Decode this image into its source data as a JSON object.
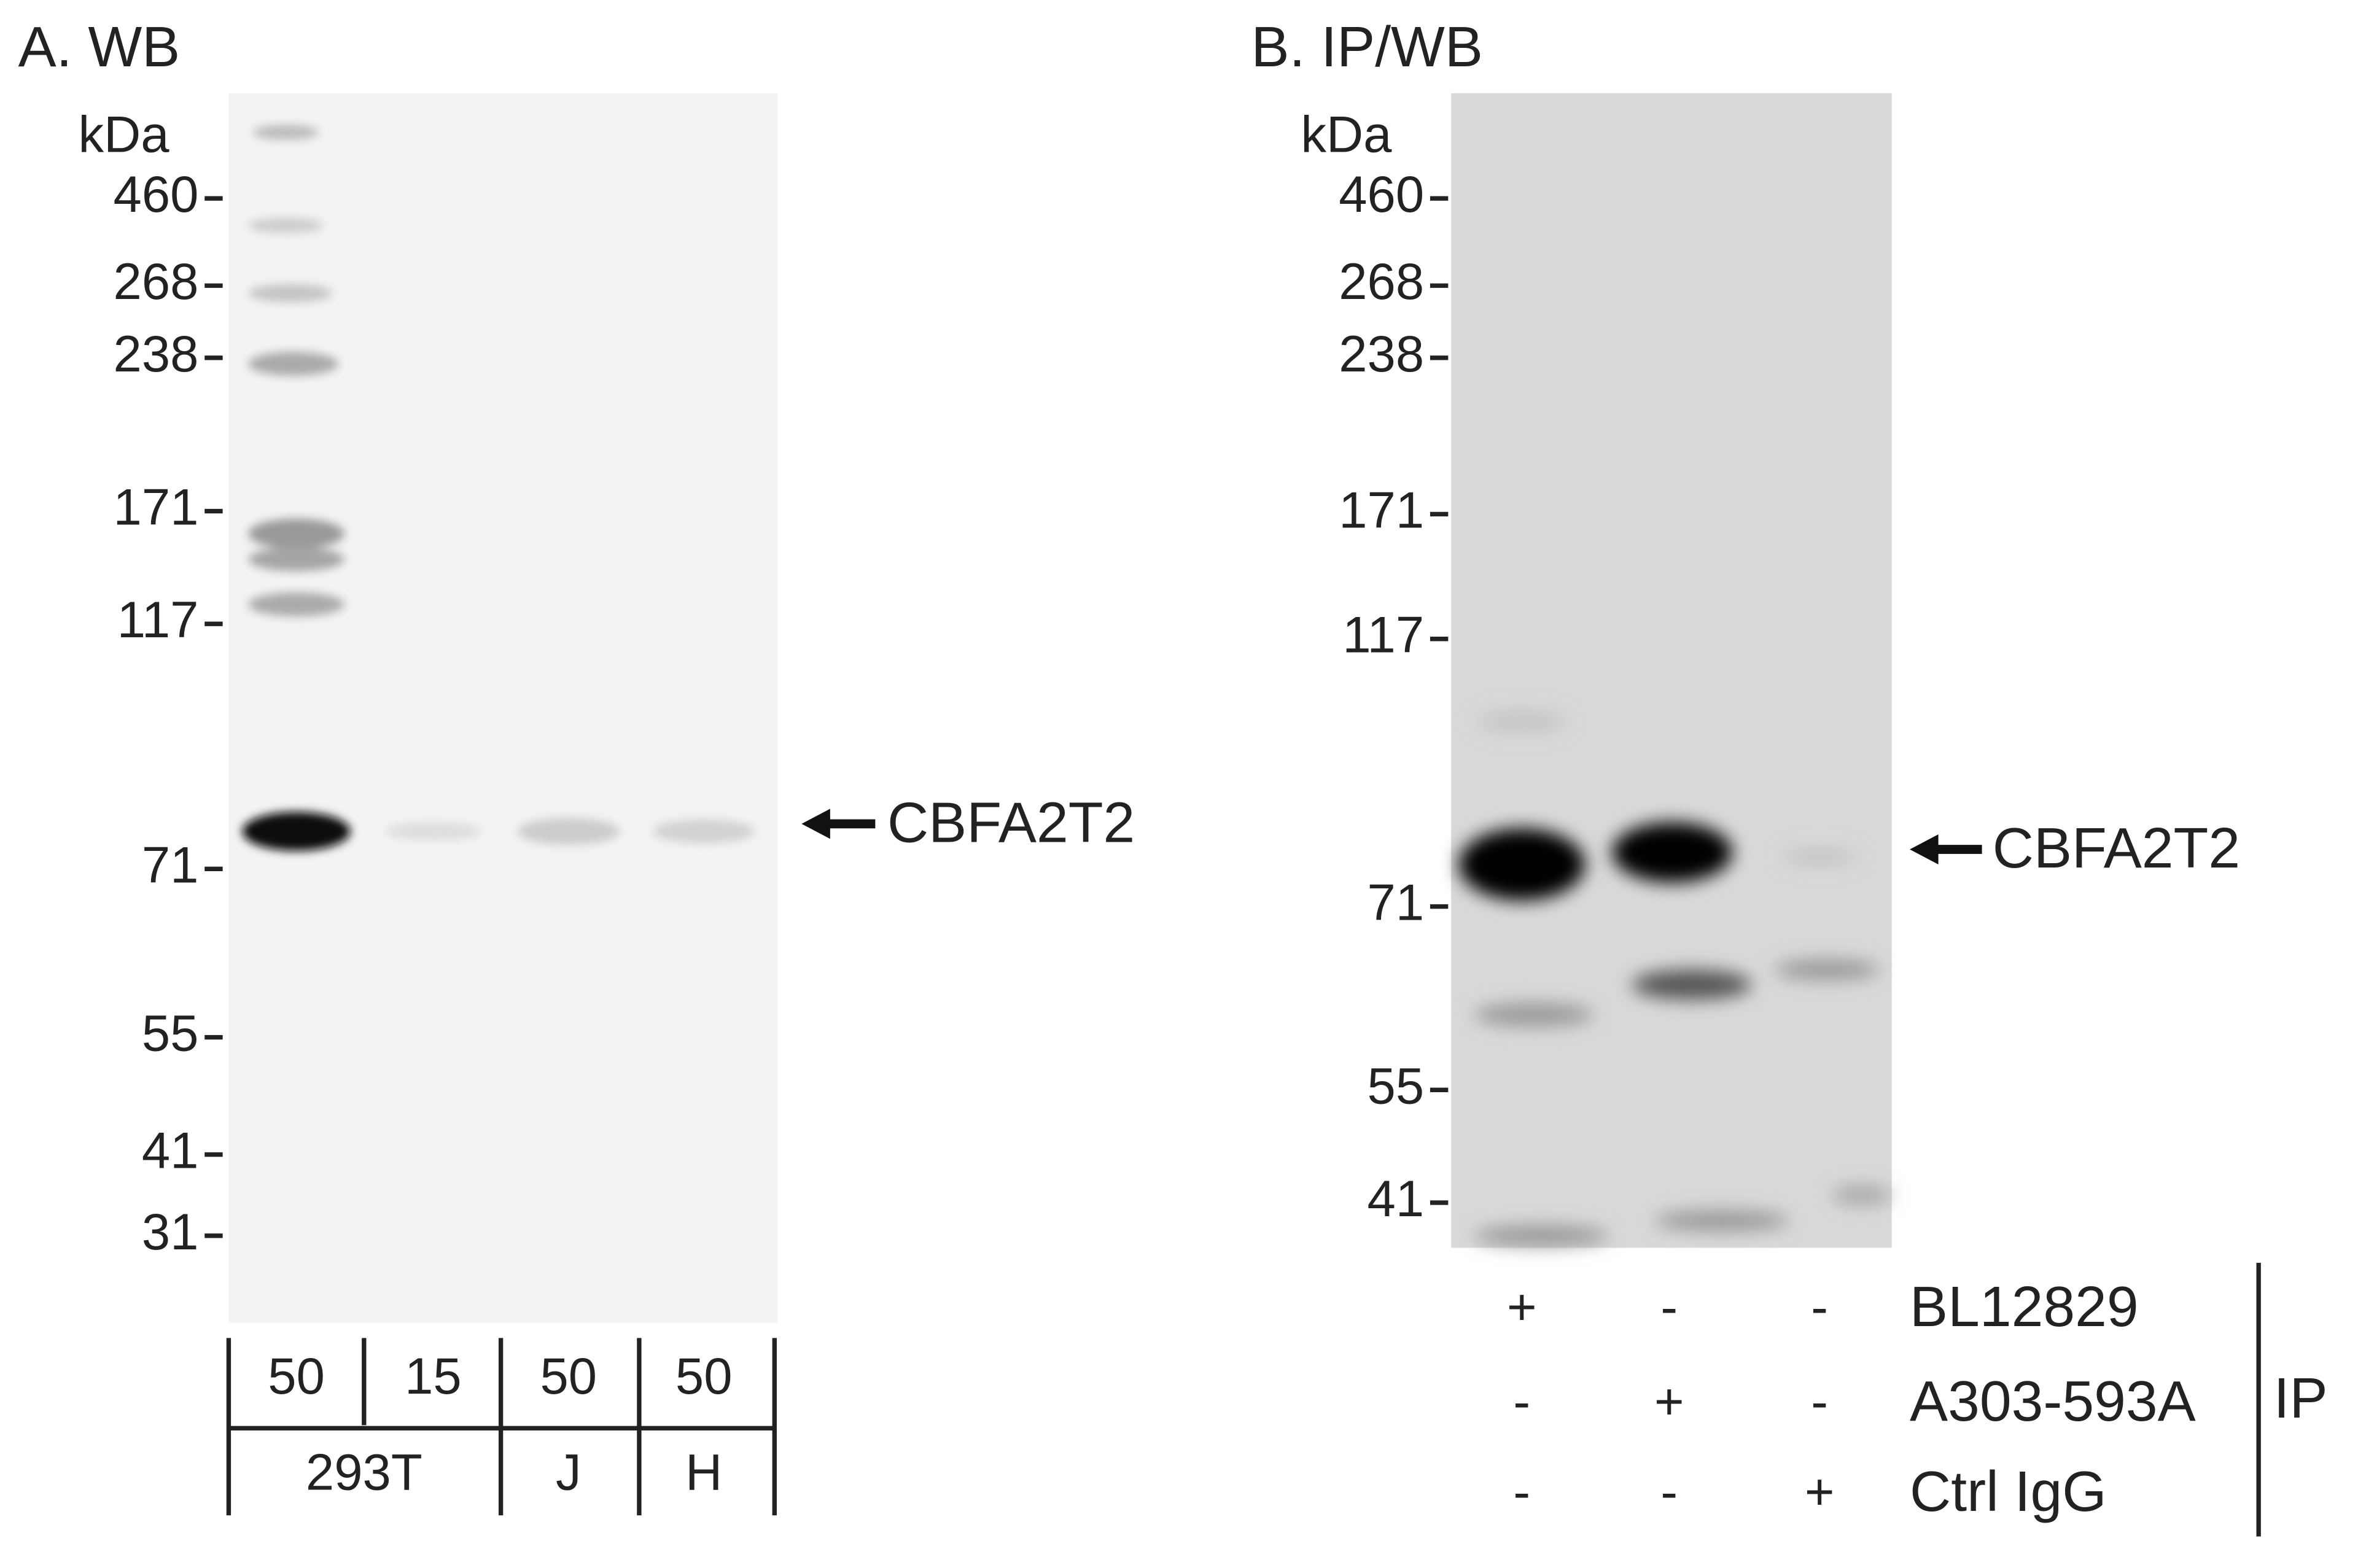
{
  "panel_a": {
    "title": "A. WB",
    "unit": "kDa",
    "markers": [
      "460",
      "268",
      "238",
      "171",
      "117",
      "71",
      "55",
      "41",
      "31"
    ],
    "target": "CBFA2T2",
    "loads": [
      "50",
      "15",
      "50",
      "50"
    ],
    "cell_lines": [
      "293T",
      "J",
      "H"
    ]
  },
  "panel_b": {
    "title": "B. IP/WB",
    "unit": "kDa",
    "markers": [
      "460",
      "268",
      "238",
      "171",
      "117",
      "71",
      "55",
      "41"
    ],
    "target": "CBFA2T2",
    "ip_rows": [
      {
        "marks": [
          "+",
          "-",
          "-"
        ],
        "label": "BL12829"
      },
      {
        "marks": [
          "-",
          "+",
          "-"
        ],
        "label": "A303-593A"
      },
      {
        "marks": [
          "-",
          "-",
          "+"
        ],
        "label": "Ctrl IgG"
      }
    ],
    "ip_label": "IP"
  }
}
